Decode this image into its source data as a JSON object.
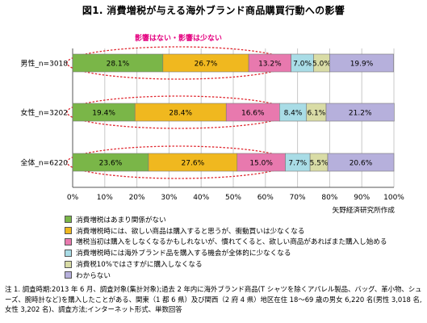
{
  "title": "図1. 消費増税が与える海外ブランド商品購買行動への影響",
  "annotation": "影響はない・影響は少ない",
  "source": "矢野経済研究所作成",
  "note": "注 1. 調査時期:2013 年 6 月、調査対象(集計対象);過去 2 年内に海外ブランド商品(T シャツを除くアパレル製品、バッグ、革小物、シューズ、腕時計など)を購入したことがある、関東（1 都 6 県）及び関西（2 府 4 県）地区在住 18～69 歳の男女 6,220 名(男性 3,018 名, 女性 3,202 名)、調査方法;インターネット形式、単数回答",
  "chart_data": {
    "type": "bar",
    "orientation": "horizontal",
    "stacked": true,
    "categories": [
      "男性_n=3018",
      "女性_n=3202",
      "全体_n=6220"
    ],
    "xlim": [
      0,
      100
    ],
    "x_tick_labels": [
      "0%",
      "10%",
      "20%",
      "30%",
      "40%",
      "50%",
      "60%",
      "70%",
      "80%",
      "90%",
      "100%"
    ],
    "series": [
      {
        "name": "消費増税はあまり関係がない",
        "color": "#7ab648",
        "values": [
          28.1,
          19.4,
          23.6
        ]
      },
      {
        "name": "消費増税時には、欲しい商品は購入すると思うが、衝動買いは少なくなる",
        "color": "#f0b81f",
        "values": [
          26.7,
          28.4,
          27.6
        ]
      },
      {
        "name": "増税当初は購入をしなくなるかもしれないが、慣れてくると、欲しい商品があればまた購入し始める",
        "color": "#e879ae",
        "values": [
          13.2,
          16.6,
          15.0
        ]
      },
      {
        "name": "消費増税時には海外ブランド品を購入する機会が全体的に少なくなる",
        "color": "#a9dce6",
        "values": [
          7.0,
          8.4,
          7.7
        ]
      },
      {
        "name": "消費税10%ではさすがに購入しなくなる",
        "color": "#d9dca6",
        "values": [
          5.0,
          6.1,
          5.5
        ]
      },
      {
        "name": "わからない",
        "color": "#b6b0dc",
        "values": [
          19.9,
          21.2,
          20.6
        ]
      }
    ],
    "data_labels": [
      [
        "28.1%",
        "26.7%",
        "13.2%",
        "7.0%",
        "5.0%",
        "19.9%"
      ],
      [
        "19.4%",
        "28.4%",
        "16.6%",
        "8.4%",
        "6.1%",
        "21.2%"
      ],
      [
        "23.6%",
        "27.6%",
        "15.0%",
        "7.7%",
        "5.5%",
        "20.6%"
      ]
    ],
    "legend_position": "bottom"
  }
}
